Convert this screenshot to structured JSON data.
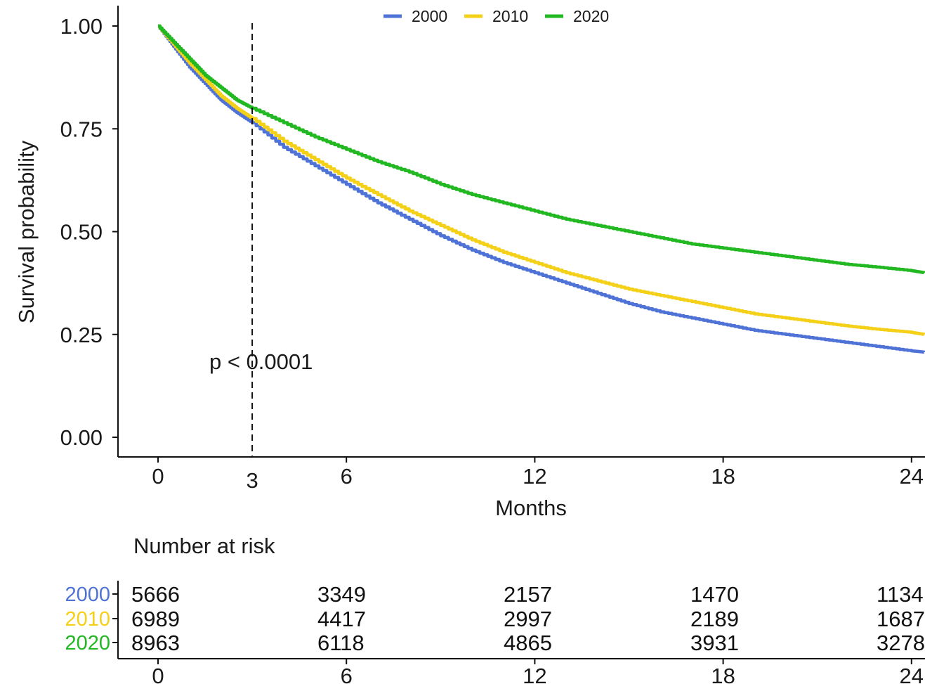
{
  "chart_data": {
    "type": "line",
    "subtype": "kaplan-meier survival curve",
    "title": "",
    "xlabel": "Months",
    "ylabel": "Survival probability",
    "xlim": [
      0,
      24.4
    ],
    "ylim": [
      0,
      1
    ],
    "x_ticks": [
      0,
      3,
      6,
      12,
      18,
      24
    ],
    "x_tick_labels": [
      "0",
      "3",
      "6",
      "12",
      "18",
      "24"
    ],
    "y_ticks": [
      0,
      0.25,
      0.5,
      0.75,
      1.0
    ],
    "y_tick_labels": [
      "0.00",
      "0.25",
      "0.50",
      "0.75",
      "1.00"
    ],
    "grid": false,
    "legend": {
      "position": "top",
      "entries": [
        "2000",
        "2010",
        "2020"
      ]
    },
    "annotations": {
      "p_value": "p < 0.0001",
      "reference_line_x": 3
    },
    "series": [
      {
        "name": "2000",
        "color": "#4f72d6",
        "x": [
          0,
          0.5,
          1,
          1.5,
          2,
          2.5,
          3,
          4,
          5,
          6,
          7,
          8,
          9,
          10,
          11,
          12,
          13,
          14,
          15,
          16,
          17,
          18,
          19,
          20,
          21,
          22,
          23,
          24,
          24.4
        ],
        "y": [
          1.0,
          0.95,
          0.9,
          0.86,
          0.82,
          0.79,
          0.765,
          0.705,
          0.66,
          0.615,
          0.57,
          0.53,
          0.49,
          0.455,
          0.425,
          0.4,
          0.375,
          0.35,
          0.325,
          0.305,
          0.29,
          0.275,
          0.26,
          0.25,
          0.24,
          0.23,
          0.22,
          0.21,
          0.207
        ]
      },
      {
        "name": "2010",
        "color": "#f5d018",
        "x": [
          0,
          0.5,
          1,
          1.5,
          2,
          2.5,
          3,
          4,
          5,
          6,
          7,
          8,
          9,
          10,
          11,
          12,
          13,
          14,
          15,
          16,
          17,
          18,
          19,
          20,
          21,
          22,
          23,
          24,
          24.4
        ],
        "y": [
          1.0,
          0.955,
          0.91,
          0.87,
          0.83,
          0.8,
          0.775,
          0.72,
          0.675,
          0.63,
          0.59,
          0.55,
          0.515,
          0.48,
          0.45,
          0.425,
          0.4,
          0.38,
          0.36,
          0.345,
          0.33,
          0.315,
          0.3,
          0.29,
          0.28,
          0.27,
          0.262,
          0.255,
          0.25
        ]
      },
      {
        "name": "2020",
        "color": "#22b822",
        "x": [
          0,
          0.5,
          1,
          1.5,
          2,
          2.5,
          3,
          4,
          5,
          6,
          7,
          8,
          9,
          10,
          11,
          12,
          13,
          14,
          15,
          16,
          17,
          18,
          19,
          20,
          21,
          22,
          23,
          24,
          24.4
        ],
        "y": [
          1.0,
          0.96,
          0.92,
          0.88,
          0.85,
          0.82,
          0.8,
          0.765,
          0.73,
          0.7,
          0.67,
          0.645,
          0.615,
          0.59,
          0.57,
          0.55,
          0.53,
          0.515,
          0.5,
          0.485,
          0.47,
          0.46,
          0.45,
          0.44,
          0.43,
          0.42,
          0.413,
          0.405,
          0.4
        ]
      }
    ],
    "risk_table": {
      "title": "Number at risk",
      "times": [
        0,
        6,
        12,
        18,
        24
      ],
      "time_labels": [
        "0",
        "6",
        "12",
        "18",
        "24"
      ],
      "rows": [
        {
          "group": "2000",
          "color": "#4f72d6",
          "values": [
            "5666",
            "3349",
            "2157",
            "1470",
            "1134"
          ]
        },
        {
          "group": "2010",
          "color": "#f5d018",
          "values": [
            "6989",
            "4417",
            "2997",
            "2189",
            "1687"
          ]
        },
        {
          "group": "2020",
          "color": "#22b822",
          "values": [
            "8963",
            "6118",
            "4865",
            "3931",
            "3278"
          ]
        }
      ]
    }
  }
}
